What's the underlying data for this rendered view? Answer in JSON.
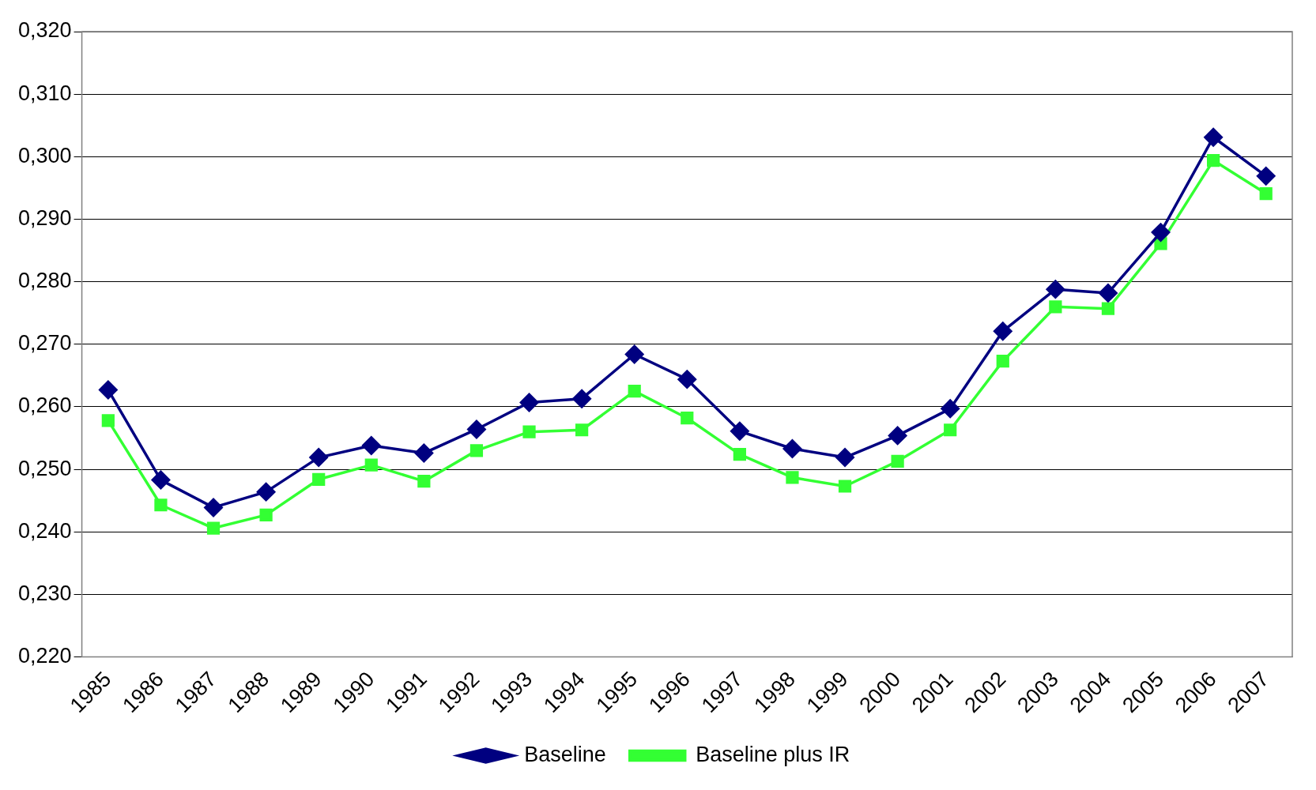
{
  "chart_data": {
    "type": "line",
    "categories": [
      "1985",
      "1986",
      "1987",
      "1988",
      "1989",
      "1990",
      "1991",
      "1992",
      "1993",
      "1994",
      "1995",
      "1996",
      "1997",
      "1998",
      "1999",
      "2000",
      "2001",
      "2002",
      "2003",
      "2004",
      "2005",
      "2006",
      "2007"
    ],
    "series": [
      {
        "name": "Baseline",
        "color": "#000080",
        "marker": "diamond",
        "values": [
          0.2627,
          0.2483,
          0.2439,
          0.2464,
          0.2519,
          0.2538,
          0.2526,
          0.2564,
          0.2607,
          0.2613,
          0.2684,
          0.2644,
          0.2561,
          0.2533,
          0.2519,
          0.2554,
          0.2597,
          0.2721,
          0.2788,
          0.2782,
          0.2879,
          0.3031,
          0.2969
        ]
      },
      {
        "name": "Baseline plus IR",
        "color": "#33ff33",
        "marker": "square",
        "values": [
          0.2578,
          0.2443,
          0.2406,
          0.2427,
          0.2484,
          0.2507,
          0.2481,
          0.253,
          0.256,
          0.2563,
          0.2625,
          0.2582,
          0.2524,
          0.2487,
          0.2473,
          0.2513,
          0.2563,
          0.2673,
          0.276,
          0.2757,
          0.2861,
          0.2994,
          0.2941
        ]
      }
    ],
    "ylim": [
      0.22,
      0.32
    ],
    "yticks": [
      {
        "value": 0.22,
        "label": "0,220"
      },
      {
        "value": 0.23,
        "label": "0,230"
      },
      {
        "value": 0.24,
        "label": "0,240"
      },
      {
        "value": 0.25,
        "label": "0,250"
      },
      {
        "value": 0.26,
        "label": "0,260"
      },
      {
        "value": 0.27,
        "label": "0,270"
      },
      {
        "value": 0.28,
        "label": "0,280"
      },
      {
        "value": 0.29,
        "label": "0,290"
      },
      {
        "value": 0.3,
        "label": "0,300"
      },
      {
        "value": 0.31,
        "label": "0,310"
      },
      {
        "value": 0.32,
        "label": "0,320"
      }
    ],
    "grid": "y",
    "legend": "bottom",
    "line_style": "solid"
  }
}
